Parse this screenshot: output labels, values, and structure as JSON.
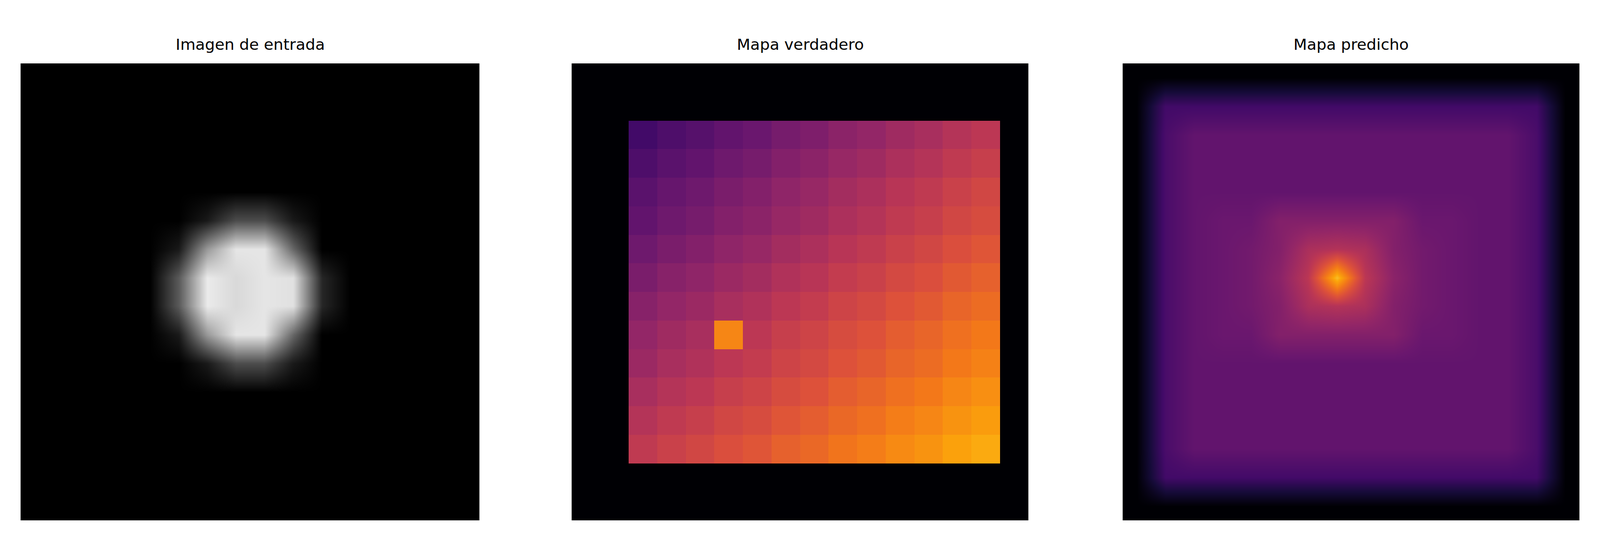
{
  "chart_data": [
    {
      "type": "heatmap",
      "title": "Imagen de entrada",
      "color": "gray",
      "tick_labels": false,
      "xlim": [
        -0.5,
        15.5
      ],
      "ylim": [
        15.5,
        -0.5
      ],
      "zlim": [
        0,
        1
      ],
      "cells": [
        [
          0,
          0,
          0,
          0,
          0,
          0,
          0,
          0,
          0,
          0,
          0,
          0,
          0,
          0,
          0,
          0
        ],
        [
          0,
          0,
          0,
          0,
          0,
          0,
          0,
          0,
          0,
          0,
          0,
          0,
          0,
          0,
          0,
          0
        ],
        [
          0,
          0,
          0,
          0,
          0,
          0,
          0,
          0,
          0,
          0,
          0,
          0,
          0,
          0,
          0,
          0
        ],
        [
          0,
          0,
          0,
          0,
          0,
          0,
          0,
          0,
          0,
          0,
          0,
          0,
          0,
          0,
          0,
          0
        ],
        [
          0,
          0,
          0,
          0,
          0,
          0,
          0,
          0,
          0,
          0,
          0,
          0,
          0,
          0,
          0,
          0
        ],
        [
          0,
          0,
          0,
          0,
          0,
          0,
          0.1,
          0.3,
          0.3,
          0.1,
          0,
          0,
          0,
          0,
          0,
          0
        ],
        [
          0,
          0,
          0,
          0,
          0,
          0.1,
          0.6,
          0.9,
          0.9,
          0.4,
          0,
          0,
          0,
          0,
          0,
          0
        ],
        [
          0,
          0,
          0,
          0,
          0,
          0.35,
          0.92,
          0.85,
          0.9,
          0.88,
          0.15,
          0,
          0,
          0,
          0,
          0
        ],
        [
          0,
          0,
          0,
          0,
          0,
          0.35,
          0.92,
          0.85,
          0.9,
          0.88,
          0.15,
          0,
          0,
          0,
          0,
          0
        ],
        [
          0,
          0,
          0,
          0,
          0,
          0.1,
          0.6,
          0.9,
          0.9,
          0.4,
          0,
          0,
          0,
          0,
          0,
          0
        ],
        [
          0,
          0,
          0,
          0,
          0,
          0,
          0.1,
          0.3,
          0.3,
          0.1,
          0,
          0,
          0,
          0,
          0,
          0
        ],
        [
          0,
          0,
          0,
          0,
          0,
          0,
          0,
          0,
          0,
          0,
          0,
          0,
          0,
          0,
          0,
          0
        ],
        [
          0,
          0,
          0,
          0,
          0,
          0,
          0,
          0,
          0,
          0,
          0,
          0,
          0,
          0,
          0,
          0
        ],
        [
          0,
          0,
          0,
          0,
          0,
          0,
          0,
          0,
          0,
          0,
          0,
          0,
          0,
          0,
          0,
          0
        ],
        [
          0,
          0,
          0,
          0,
          0,
          0,
          0,
          0,
          0,
          0,
          0,
          0,
          0,
          0,
          0,
          0
        ],
        [
          0,
          0,
          0,
          0,
          0,
          0,
          0,
          0,
          0,
          0,
          0,
          0,
          0,
          0,
          0,
          0
        ]
      ]
    },
    {
      "type": "heatmap",
      "title": "Mapa verdadero",
      "color": "inferno",
      "tick_labels": false,
      "xlim": [
        -0.5,
        15.5
      ],
      "ylim": [
        15.5,
        -0.5
      ],
      "zlim": [
        0,
        1
      ],
      "cells": [
        [
          0,
          0,
          0,
          0,
          0,
          0,
          0,
          0,
          0,
          0,
          0,
          0,
          0,
          0,
          0,
          0
        ],
        [
          0,
          0,
          0,
          0,
          0,
          0,
          0,
          0,
          0,
          0,
          0,
          0,
          0,
          0,
          0,
          0
        ],
        [
          0,
          0,
          0.2,
          0.23,
          0.25,
          0.28,
          0.3,
          0.33,
          0.35,
          0.38,
          0.4,
          0.43,
          0.45,
          0.48,
          0.5,
          0
        ],
        [
          0,
          0,
          0.23,
          0.26,
          0.28,
          0.31,
          0.33,
          0.36,
          0.38,
          0.41,
          0.43,
          0.46,
          0.48,
          0.51,
          0.53,
          0
        ],
        [
          0,
          0,
          0.26,
          0.29,
          0.31,
          0.34,
          0.36,
          0.39,
          0.41,
          0.44,
          0.46,
          0.49,
          0.51,
          0.54,
          0.56,
          0
        ],
        [
          0,
          0,
          0.28,
          0.31,
          0.33,
          0.36,
          0.38,
          0.41,
          0.43,
          0.46,
          0.48,
          0.51,
          0.53,
          0.56,
          0.58,
          0
        ],
        [
          0,
          0,
          0.31,
          0.34,
          0.36,
          0.39,
          0.41,
          0.44,
          0.46,
          0.49,
          0.51,
          0.54,
          0.56,
          0.59,
          0.61,
          0
        ],
        [
          0,
          0,
          0.34,
          0.37,
          0.39,
          0.42,
          0.44,
          0.47,
          0.49,
          0.52,
          0.54,
          0.57,
          0.59,
          0.62,
          0.64,
          0
        ],
        [
          0,
          0,
          0.37,
          0.4,
          0.42,
          0.45,
          0.47,
          0.5,
          0.52,
          0.55,
          0.57,
          0.6,
          0.62,
          0.65,
          0.67,
          0
        ],
        [
          0,
          0,
          0.4,
          0.43,
          0.45,
          0.73,
          0.5,
          0.53,
          0.55,
          0.58,
          0.6,
          0.63,
          0.65,
          0.68,
          0.7,
          0
        ],
        [
          0,
          0,
          0.42,
          0.45,
          0.47,
          0.5,
          0.52,
          0.55,
          0.57,
          0.6,
          0.62,
          0.65,
          0.67,
          0.7,
          0.72,
          0
        ],
        [
          0,
          0,
          0.45,
          0.48,
          0.5,
          0.53,
          0.55,
          0.58,
          0.6,
          0.63,
          0.65,
          0.68,
          0.7,
          0.73,
          0.75,
          0
        ],
        [
          0,
          0,
          0.48,
          0.51,
          0.53,
          0.56,
          0.58,
          0.61,
          0.63,
          0.66,
          0.68,
          0.71,
          0.73,
          0.76,
          0.78,
          0
        ],
        [
          0,
          0,
          0.51,
          0.54,
          0.56,
          0.59,
          0.61,
          0.64,
          0.66,
          0.69,
          0.71,
          0.74,
          0.76,
          0.79,
          0.81,
          0
        ],
        [
          0,
          0,
          0,
          0,
          0,
          0,
          0,
          0,
          0,
          0,
          0,
          0,
          0,
          0,
          0,
          0
        ],
        [
          0,
          0,
          0,
          0,
          0,
          0,
          0,
          0,
          0,
          0,
          0,
          0,
          0,
          0,
          0,
          0
        ]
      ]
    },
    {
      "type": "heatmap",
      "title": "Mapa predicho",
      "color": "inferno",
      "tick_labels": false,
      "xlim": [
        -0.5,
        15.5
      ],
      "ylim": [
        15.5,
        -0.5
      ],
      "zlim": [
        0,
        1
      ],
      "cells": [
        [
          0,
          0,
          0,
          0,
          0,
          0,
          0,
          0,
          0,
          0,
          0,
          0,
          0,
          0,
          0,
          0
        ],
        [
          0,
          0.2,
          0.2,
          0.2,
          0.2,
          0.2,
          0.2,
          0.2,
          0.2,
          0.2,
          0.2,
          0.2,
          0.2,
          0.2,
          0.2,
          0
        ],
        [
          0,
          0.22,
          0.28,
          0.28,
          0.28,
          0.28,
          0.28,
          0.28,
          0.28,
          0.28,
          0.28,
          0.28,
          0.28,
          0.28,
          0.22,
          0
        ],
        [
          0,
          0.22,
          0.28,
          0.28,
          0.28,
          0.28,
          0.28,
          0.28,
          0.28,
          0.28,
          0.28,
          0.28,
          0.28,
          0.28,
          0.22,
          0
        ],
        [
          0,
          0.22,
          0.28,
          0.28,
          0.28,
          0.28,
          0.28,
          0.28,
          0.28,
          0.28,
          0.28,
          0.28,
          0.28,
          0.28,
          0.22,
          0
        ],
        [
          0,
          0.22,
          0.28,
          0.3,
          0.3,
          0.36,
          0.36,
          0.36,
          0.36,
          0.36,
          0.3,
          0.3,
          0.28,
          0.28,
          0.22,
          0
        ],
        [
          0,
          0.22,
          0.28,
          0.3,
          0.32,
          0.36,
          0.46,
          0.48,
          0.46,
          0.36,
          0.32,
          0.3,
          0.28,
          0.28,
          0.22,
          0
        ],
        [
          0,
          0.22,
          0.28,
          0.3,
          0.32,
          0.38,
          0.5,
          0.85,
          0.5,
          0.38,
          0.32,
          0.3,
          0.28,
          0.28,
          0.22,
          0
        ],
        [
          0,
          0.22,
          0.28,
          0.3,
          0.32,
          0.36,
          0.46,
          0.48,
          0.46,
          0.36,
          0.32,
          0.3,
          0.28,
          0.28,
          0.22,
          0
        ],
        [
          0,
          0.22,
          0.28,
          0.3,
          0.3,
          0.36,
          0.36,
          0.36,
          0.36,
          0.36,
          0.3,
          0.3,
          0.28,
          0.28,
          0.22,
          0
        ],
        [
          0,
          0.22,
          0.28,
          0.28,
          0.28,
          0.28,
          0.28,
          0.28,
          0.28,
          0.28,
          0.28,
          0.28,
          0.28,
          0.28,
          0.22,
          0
        ],
        [
          0,
          0.22,
          0.28,
          0.28,
          0.28,
          0.28,
          0.28,
          0.28,
          0.28,
          0.28,
          0.28,
          0.28,
          0.28,
          0.28,
          0.22,
          0
        ],
        [
          0,
          0.22,
          0.28,
          0.28,
          0.28,
          0.28,
          0.28,
          0.28,
          0.28,
          0.28,
          0.28,
          0.28,
          0.28,
          0.28,
          0.22,
          0
        ],
        [
          0,
          0.22,
          0.28,
          0.28,
          0.28,
          0.28,
          0.28,
          0.28,
          0.28,
          0.28,
          0.28,
          0.28,
          0.28,
          0.28,
          0.22,
          0
        ],
        [
          0,
          0.2,
          0.2,
          0.2,
          0.2,
          0.2,
          0.2,
          0.2,
          0.2,
          0.2,
          0.2,
          0.2,
          0.2,
          0.2,
          0.2,
          0
        ],
        [
          0,
          0,
          0,
          0,
          0,
          0,
          0,
          0,
          0,
          0,
          0,
          0,
          0,
          0,
          0,
          0
        ]
      ]
    }
  ]
}
